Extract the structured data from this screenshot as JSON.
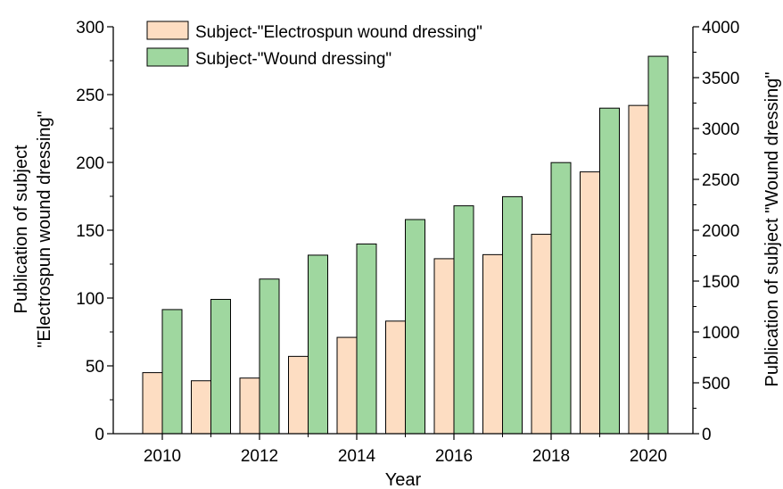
{
  "chart_data": {
    "type": "bar",
    "categories": [
      "2010",
      "2011",
      "2012",
      "2013",
      "2014",
      "2015",
      "2016",
      "2017",
      "2018",
      "2019",
      "2020"
    ],
    "x_tick_labels": [
      "2010",
      "2012",
      "2014",
      "2016",
      "2018",
      "2020"
    ],
    "xlabel": "Year",
    "ylabel_left_line1": "Publication of subject",
    "ylabel_left_line2": "\"Electrospun wound dressing\"",
    "ylabel_right": "Publication of subject \"Wound dressing\"",
    "ylim_left": [
      0,
      300
    ],
    "ylim_right": [
      0,
      4000
    ],
    "yticks_left": [
      "0",
      "50",
      "100",
      "150",
      "200",
      "250",
      "300"
    ],
    "yticks_right": [
      "0",
      "500",
      "1000",
      "1500",
      "2000",
      "2500",
      "3000",
      "3500",
      "4000"
    ],
    "series": [
      {
        "name": "Subject-\"Electrospun wound dressing\"",
        "axis": "left",
        "color": "#FDDDC2",
        "values": [
          45,
          39,
          41,
          57,
          71,
          83,
          129,
          132,
          147,
          193,
          242
        ]
      },
      {
        "name": "Subject-\"Wound dressing\"",
        "axis": "right",
        "color": "#9FD79F",
        "values": [
          1220,
          1320,
          1520,
          1755,
          1865,
          2105,
          2240,
          2330,
          2665,
          3200,
          3710
        ]
      }
    ],
    "grid": false,
    "legend_position": "top-left"
  }
}
